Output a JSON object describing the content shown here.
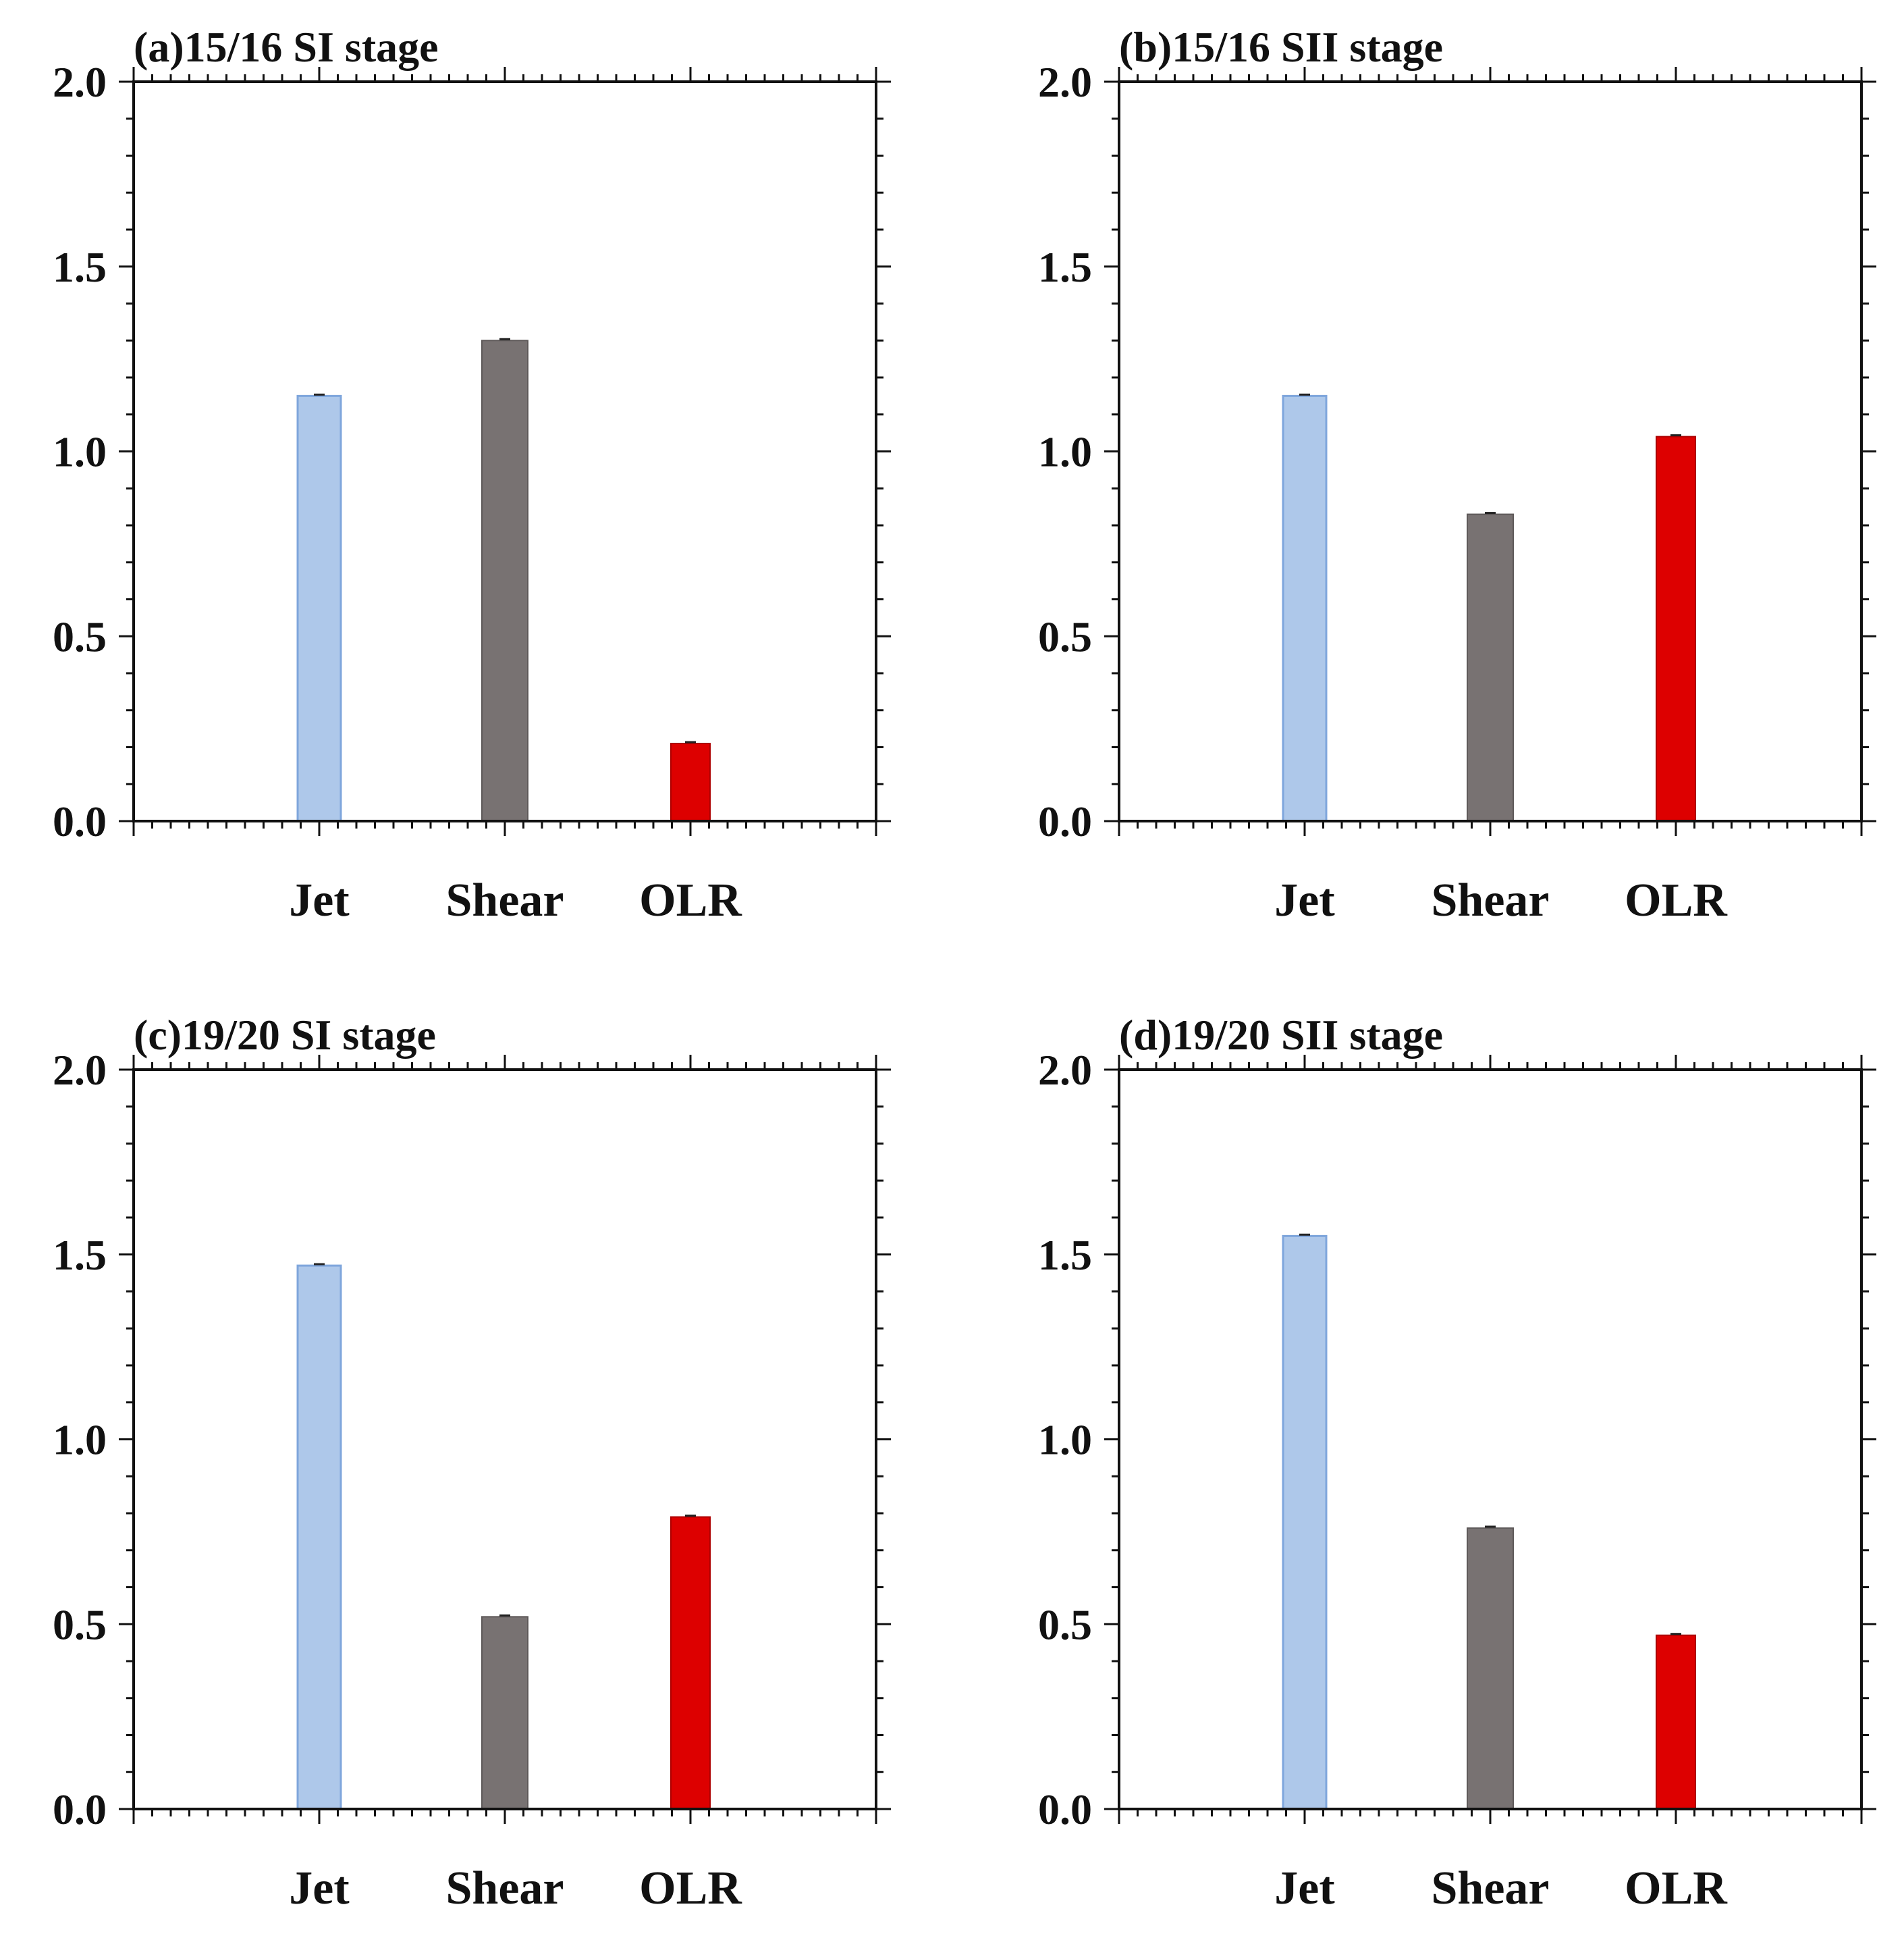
{
  "chart_data": [
    {
      "type": "bar",
      "title": "(a)15/16 SI stage",
      "categories": [
        "Jet",
        "Shear",
        "OLR"
      ],
      "values": [
        1.15,
        1.3,
        0.21
      ],
      "colors": [
        "#aec8ea",
        "#787272",
        "#dd0000"
      ],
      "ylim": [
        0.0,
        2.0
      ],
      "yticks": [
        "0.0",
        "0.5",
        "1.0",
        "1.5",
        "2.0"
      ],
      "xlabel": "",
      "ylabel": ""
    },
    {
      "type": "bar",
      "title": "(b)15/16 SII stage",
      "categories": [
        "Jet",
        "Shear",
        "OLR"
      ],
      "values": [
        1.15,
        0.83,
        1.04
      ],
      "colors": [
        "#aec8ea",
        "#787272",
        "#dd0000"
      ],
      "ylim": [
        0.0,
        2.0
      ],
      "yticks": [
        "0.0",
        "0.5",
        "1.0",
        "1.5",
        "2.0"
      ],
      "xlabel": "",
      "ylabel": ""
    },
    {
      "type": "bar",
      "title": "(c)19/20 SI stage",
      "categories": [
        "Jet",
        "Shear",
        "OLR"
      ],
      "values": [
        1.47,
        0.52,
        0.79
      ],
      "colors": [
        "#aec8ea",
        "#787272",
        "#dd0000"
      ],
      "ylim": [
        0.0,
        2.0
      ],
      "yticks": [
        "0.0",
        "0.5",
        "1.0",
        "1.5",
        "2.0"
      ],
      "xlabel": "",
      "ylabel": ""
    },
    {
      "type": "bar",
      "title": "(d)19/20 SII stage",
      "categories": [
        "Jet",
        "Shear",
        "OLR"
      ],
      "values": [
        1.55,
        0.76,
        0.47
      ],
      "colors": [
        "#aec8ea",
        "#787272",
        "#dd0000"
      ],
      "ylim": [
        0.0,
        2.0
      ],
      "yticks": [
        "0.0",
        "0.5",
        "1.0",
        "1.5",
        "2.0"
      ],
      "xlabel": "",
      "ylabel": ""
    }
  ]
}
